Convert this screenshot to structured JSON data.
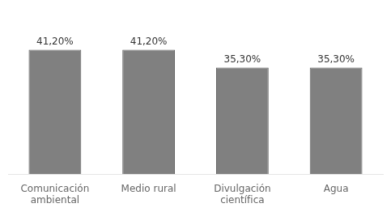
{
  "chart_data": {
    "type": "bar",
    "categories": [
      "Comunicación\nambiental",
      "Medio rural",
      "Divulgación\ncientífica",
      "Agua"
    ],
    "values": [
      41.2,
      41.2,
      35.3,
      35.3
    ],
    "value_labels": [
      "41,20%",
      "41,20%",
      "35,30%",
      "35,30%"
    ],
    "color": "#808080",
    "ylim": [
      0,
      55
    ],
    "grid": false,
    "data_labels": true,
    "tick_labels": "x"
  }
}
